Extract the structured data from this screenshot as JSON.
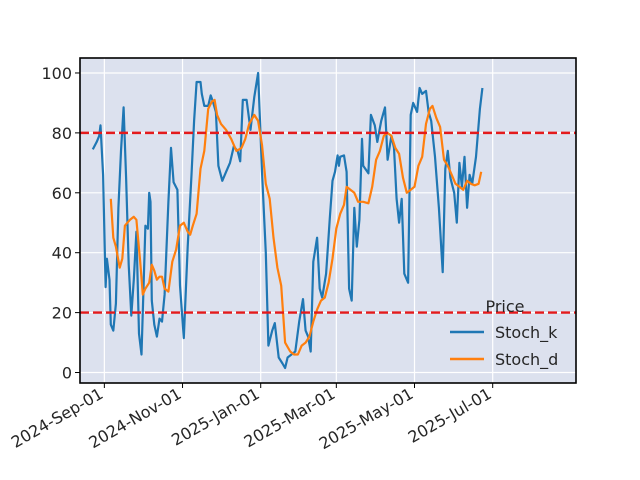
{
  "chart_data": {
    "type": "line",
    "title": "",
    "xlabel": "",
    "ylabel": "",
    "x_range": [
      "2024-08-13",
      "2025-09-04"
    ],
    "y_range": [
      -3.5,
      105
    ],
    "y_ticks": [
      0,
      20,
      40,
      60,
      80,
      100
    ],
    "x_ticks": [
      {
        "date": "2024-09-01",
        "label": "2024-Sep-01"
      },
      {
        "date": "2024-11-01",
        "label": "2024-Nov-01"
      },
      {
        "date": "2025-01-01",
        "label": "2025-Jan-01"
      },
      {
        "date": "2025-03-01",
        "label": "2025-Mar-01"
      },
      {
        "date": "2025-05-01",
        "label": "2025-May-01"
      },
      {
        "date": "2025-07-01",
        "label": "2025-Jul-01"
      }
    ],
    "grid": true,
    "background": "#dce1ee",
    "legend": {
      "title": "Price",
      "placement": "lower-right"
    },
    "reference_lines": [
      {
        "y": 80,
        "color": "#e41a1c",
        "style": "dashed"
      },
      {
        "y": 20,
        "color": "#e41a1c",
        "style": "dashed"
      }
    ],
    "series": [
      {
        "name": "Stoch_k",
        "color": "#1f77b4",
        "points": [
          [
            "2024-08-23",
            74.5
          ],
          [
            "2024-08-26",
            77
          ],
          [
            "2024-08-28",
            79
          ],
          [
            "2024-08-29",
            82.5
          ],
          [
            "2024-08-31",
            66
          ],
          [
            "2024-09-02",
            28.5
          ],
          [
            "2024-09-03",
            38
          ],
          [
            "2024-09-05",
            31
          ],
          [
            "2024-09-06",
            16
          ],
          [
            "2024-09-08",
            14
          ],
          [
            "2024-09-10",
            23
          ],
          [
            "2024-09-12",
            55
          ],
          [
            "2024-09-14",
            74
          ],
          [
            "2024-09-16",
            88.5
          ],
          [
            "2024-09-18",
            65
          ],
          [
            "2024-09-20",
            36
          ],
          [
            "2024-09-22",
            19
          ],
          [
            "2024-09-24",
            31
          ],
          [
            "2024-09-26",
            47
          ],
          [
            "2024-09-28",
            13
          ],
          [
            "2024-09-30",
            6
          ],
          [
            "2024-10-03",
            49
          ],
          [
            "2024-10-05",
            48
          ],
          [
            "2024-10-06",
            60
          ],
          [
            "2024-10-07",
            57
          ],
          [
            "2024-10-08",
            24
          ],
          [
            "2024-10-10",
            16
          ],
          [
            "2024-10-12",
            12
          ],
          [
            "2024-10-14",
            18
          ],
          [
            "2024-10-16",
            17
          ],
          [
            "2024-10-18",
            26
          ],
          [
            "2024-10-21",
            57
          ],
          [
            "2024-10-23",
            75
          ],
          [
            "2024-10-25",
            63.5
          ],
          [
            "2024-10-28",
            61
          ],
          [
            "2024-10-30",
            29
          ],
          [
            "2024-11-02",
            11.5
          ],
          [
            "2024-11-05",
            42
          ],
          [
            "2024-11-08",
            66
          ],
          [
            "2024-11-10",
            84
          ],
          [
            "2024-11-12",
            97
          ],
          [
            "2024-11-15",
            97
          ],
          [
            "2024-11-16",
            93
          ],
          [
            "2024-11-18",
            89
          ],
          [
            "2024-11-21",
            89
          ],
          [
            "2024-11-23",
            92.5
          ],
          [
            "2024-11-25",
            90
          ],
          [
            "2024-11-27",
            87
          ],
          [
            "2024-11-29",
            69
          ],
          [
            "2024-12-02",
            64
          ],
          [
            "2024-12-05",
            67
          ],
          [
            "2024-12-08",
            70
          ],
          [
            "2024-12-11",
            75.5
          ],
          [
            "2024-12-14",
            74
          ],
          [
            "2024-12-16",
            70.5
          ],
          [
            "2024-12-18",
            91
          ],
          [
            "2024-12-21",
            91
          ],
          [
            "2024-12-24",
            81
          ],
          [
            "2024-12-27",
            92
          ],
          [
            "2024-12-30",
            100
          ],
          [
            "2025-01-02",
            67
          ],
          [
            "2025-01-05",
            40
          ],
          [
            "2025-01-07",
            9
          ],
          [
            "2025-01-10",
            14
          ],
          [
            "2025-01-12",
            16.5
          ],
          [
            "2025-01-15",
            5
          ],
          [
            "2025-01-18",
            3
          ],
          [
            "2025-01-20",
            1.5
          ],
          [
            "2025-01-22",
            5
          ],
          [
            "2025-01-25",
            6
          ],
          [
            "2025-01-28",
            7
          ],
          [
            "2025-01-31",
            17
          ],
          [
            "2025-02-03",
            24.5
          ],
          [
            "2025-02-05",
            14
          ],
          [
            "2025-02-07",
            12
          ],
          [
            "2025-02-09",
            7
          ],
          [
            "2025-02-11",
            37
          ],
          [
            "2025-02-14",
            45
          ],
          [
            "2025-02-16",
            28
          ],
          [
            "2025-02-18",
            25
          ],
          [
            "2025-02-21",
            33
          ],
          [
            "2025-02-24",
            52
          ],
          [
            "2025-02-26",
            64
          ],
          [
            "2025-02-28",
            67
          ],
          [
            "2025-03-02",
            72.5
          ],
          [
            "2025-03-03",
            69
          ],
          [
            "2025-03-04",
            72
          ],
          [
            "2025-03-07",
            72.5
          ],
          [
            "2025-03-09",
            67
          ],
          [
            "2025-03-11",
            28
          ],
          [
            "2025-03-13",
            24
          ],
          [
            "2025-03-15",
            55
          ],
          [
            "2025-03-17",
            42
          ],
          [
            "2025-03-19",
            51
          ],
          [
            "2025-03-21",
            78
          ],
          [
            "2025-03-22",
            69
          ],
          [
            "2025-03-26",
            66.5
          ],
          [
            "2025-03-28",
            86
          ],
          [
            "2025-03-31",
            82.5
          ],
          [
            "2025-04-02",
            77
          ],
          [
            "2025-04-05",
            84
          ],
          [
            "2025-04-08",
            88.5
          ],
          [
            "2025-04-10",
            71
          ],
          [
            "2025-04-13",
            79
          ],
          [
            "2025-04-15",
            75
          ],
          [
            "2025-04-17",
            58
          ],
          [
            "2025-04-19",
            50
          ],
          [
            "2025-04-21",
            58
          ],
          [
            "2025-04-23",
            33
          ],
          [
            "2025-04-26",
            30
          ],
          [
            "2025-04-28",
            86
          ],
          [
            "2025-04-30",
            90
          ],
          [
            "2025-05-03",
            87
          ],
          [
            "2025-05-05",
            95
          ],
          [
            "2025-05-07",
            93
          ],
          [
            "2025-05-10",
            94
          ],
          [
            "2025-05-12",
            87
          ],
          [
            "2025-05-14",
            84
          ],
          [
            "2025-05-17",
            72
          ],
          [
            "2025-05-20",
            55
          ],
          [
            "2025-05-23",
            33.5
          ],
          [
            "2025-05-25",
            68
          ],
          [
            "2025-05-27",
            74
          ],
          [
            "2025-05-29",
            65
          ],
          [
            "2025-06-01",
            60
          ],
          [
            "2025-06-03",
            50
          ],
          [
            "2025-06-05",
            70
          ],
          [
            "2025-06-07",
            62
          ],
          [
            "2025-06-09",
            72
          ],
          [
            "2025-06-11",
            55
          ],
          [
            "2025-06-13",
            66
          ],
          [
            "2025-06-15",
            63
          ],
          [
            "2025-06-18",
            72
          ],
          [
            "2025-06-21",
            88
          ],
          [
            "2025-06-23",
            95
          ]
        ]
      },
      {
        "name": "Stoch_d",
        "color": "#ff7f0e",
        "points": [
          [
            "2024-09-06",
            58
          ],
          [
            "2024-09-08",
            45
          ],
          [
            "2024-09-10",
            42
          ],
          [
            "2024-09-13",
            35
          ],
          [
            "2024-09-15",
            38
          ],
          [
            "2024-09-17",
            49
          ],
          [
            "2024-09-19",
            50
          ],
          [
            "2024-09-21",
            51
          ],
          [
            "2024-09-24",
            52
          ],
          [
            "2024-09-26",
            51
          ],
          [
            "2024-09-29",
            37
          ],
          [
            "2024-10-01",
            26
          ],
          [
            "2024-10-03",
            28
          ],
          [
            "2024-10-06",
            30
          ],
          [
            "2024-10-08",
            36
          ],
          [
            "2024-10-10",
            34
          ],
          [
            "2024-10-12",
            31
          ],
          [
            "2024-10-14",
            32
          ],
          [
            "2024-10-16",
            32
          ],
          [
            "2024-10-18",
            28
          ],
          [
            "2024-10-21",
            27
          ],
          [
            "2024-10-24",
            37
          ],
          [
            "2024-10-27",
            41
          ],
          [
            "2024-10-30",
            49
          ],
          [
            "2024-11-02",
            50
          ],
          [
            "2024-11-05",
            47
          ],
          [
            "2024-11-07",
            46
          ],
          [
            "2024-11-09",
            49
          ],
          [
            "2024-11-12",
            53
          ],
          [
            "2024-11-15",
            68
          ],
          [
            "2024-11-18",
            74
          ],
          [
            "2024-11-21",
            88
          ],
          [
            "2024-11-24",
            90.5
          ],
          [
            "2024-11-26",
            91
          ],
          [
            "2024-11-28",
            86
          ],
          [
            "2024-12-01",
            83
          ],
          [
            "2024-12-05",
            81
          ],
          [
            "2024-12-09",
            78
          ],
          [
            "2024-12-13",
            74
          ],
          [
            "2024-12-17",
            75
          ],
          [
            "2024-12-20",
            78
          ],
          [
            "2024-12-23",
            83
          ],
          [
            "2024-12-27",
            86
          ],
          [
            "2024-12-30",
            84
          ],
          [
            "2025-01-02",
            76
          ],
          [
            "2025-01-05",
            63
          ],
          [
            "2025-01-08",
            58
          ],
          [
            "2025-01-11",
            45
          ],
          [
            "2025-01-14",
            35
          ],
          [
            "2025-01-17",
            29
          ],
          [
            "2025-01-20",
            10
          ],
          [
            "2025-01-24",
            7
          ],
          [
            "2025-01-27",
            6
          ],
          [
            "2025-01-30",
            6
          ],
          [
            "2025-02-02",
            9
          ],
          [
            "2025-02-05",
            10
          ],
          [
            "2025-02-08",
            12
          ],
          [
            "2025-02-11",
            17
          ],
          [
            "2025-02-14",
            21
          ],
          [
            "2025-02-17",
            24
          ],
          [
            "2025-02-20",
            25
          ],
          [
            "2025-02-23",
            30
          ],
          [
            "2025-02-26",
            38
          ],
          [
            "2025-03-01",
            48
          ],
          [
            "2025-03-04",
            53
          ],
          [
            "2025-03-07",
            56
          ],
          [
            "2025-03-09",
            62
          ],
          [
            "2025-03-12",
            61
          ],
          [
            "2025-03-15",
            60
          ],
          [
            "2025-03-18",
            57
          ],
          [
            "2025-03-22",
            57
          ],
          [
            "2025-03-26",
            56.5
          ],
          [
            "2025-03-29",
            62
          ],
          [
            "2025-04-01",
            71
          ],
          [
            "2025-04-04",
            74
          ],
          [
            "2025-04-07",
            79
          ],
          [
            "2025-04-10",
            80
          ],
          [
            "2025-04-13",
            79
          ],
          [
            "2025-04-16",
            75
          ],
          [
            "2025-04-19",
            73
          ],
          [
            "2025-04-22",
            65
          ],
          [
            "2025-04-25",
            60
          ],
          [
            "2025-04-28",
            61
          ],
          [
            "2025-05-01",
            62
          ],
          [
            "2025-05-04",
            69
          ],
          [
            "2025-05-07",
            72
          ],
          [
            "2025-05-10",
            83
          ],
          [
            "2025-05-13",
            88
          ],
          [
            "2025-05-15",
            89
          ],
          [
            "2025-05-18",
            85
          ],
          [
            "2025-05-21",
            82
          ],
          [
            "2025-05-24",
            71
          ],
          [
            "2025-05-27",
            69
          ],
          [
            "2025-05-30",
            66
          ],
          [
            "2025-06-02",
            63
          ],
          [
            "2025-06-05",
            62
          ],
          [
            "2025-06-08",
            61
          ],
          [
            "2025-06-11",
            64
          ],
          [
            "2025-06-14",
            63
          ],
          [
            "2025-06-17",
            62.5
          ],
          [
            "2025-06-20",
            63
          ],
          [
            "2025-06-22",
            67
          ]
        ]
      }
    ]
  }
}
